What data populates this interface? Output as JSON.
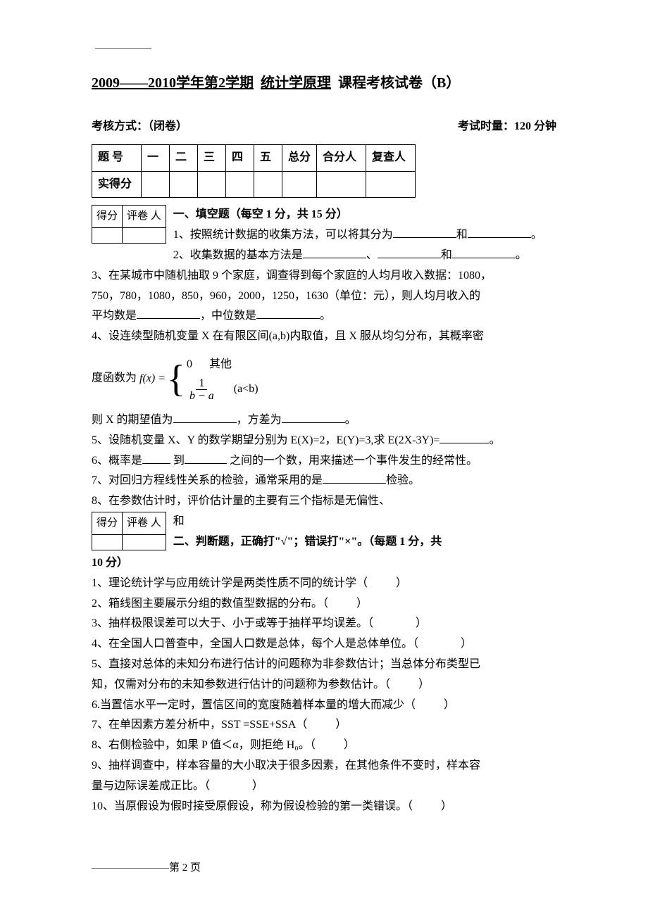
{
  "title": {
    "year_range": "2009——2010",
    "t1": "学年第",
    "semester": "2",
    "t2": "学期",
    "course": "统计学原理",
    "t3": "课程考核试卷（B）"
  },
  "exam_info": {
    "method": "考核方式：（闭卷）",
    "duration": "考试时量：120 分钟"
  },
  "score_table": {
    "headers": [
      "题 号",
      "一",
      "二",
      "三",
      "四",
      "五",
      "总分",
      "合分人",
      "复查人"
    ],
    "row2_label": "实得分"
  },
  "grader": {
    "c1": "得分",
    "c2": "评卷 人"
  },
  "section1_head": "一、填空题（每空 1 分，共 15 分）",
  "q1": {
    "pre": "1、按照统计数据的收集方法，可以将其分为",
    "mid": "和",
    "end": "。"
  },
  "q2": {
    "pre": "2、收集数据的基本方法是",
    "sep1": "、",
    "sep2": "和",
    "end": "。"
  },
  "q3": {
    "line1": "3、在某城市中随机抽取 9 个家庭，调查得到每个家庭的人均月收入数据：1080，",
    "line2": "750，780，1080，850，960，2000，1250，1630（单位：元），则人均月收入的",
    "line3a": "平均数是",
    "line3b": "，中位数是",
    "line3c": "。"
  },
  "q4": {
    "line1": "4、设连续型随机变量 X 在有限区间(a,b)内取值，且 X 服从均匀分布，其概率密",
    "fx_pre": "度函数为",
    "fx_label": "f(x) =",
    "case1_val": "0",
    "case1_cond": "其他",
    "case2_num": "1",
    "case2_den": "b − a",
    "case2_cond": "(a<b)",
    "line3a": "则 X 的期望值为",
    "line3b": "，方差为",
    "line3c": "。"
  },
  "q5": {
    "pre": "5、设随机变量 X、Y 的数学期望分别为 E(X)=2，E(Y)=3,求 E(2X-3Y)=",
    "end": "。"
  },
  "q6": {
    "a": "6、概率是",
    "b": " 到",
    "c": " 之间的一个数，用来描述一个事件发生的经常性。"
  },
  "q7": {
    "a": "7、对回归方程线性关系的检验，通常采用的是",
    "b": "检验。"
  },
  "q8": {
    "line1": "8、在参数估计时，评价估计量的主要有三个指标是无偏性、",
    "line2": "和"
  },
  "section2_head": "二、判断题，正确打\"√\"；错误打\"×\"。（每题 1 分，共",
  "section2_head2": "10 分）",
  "j1": "1、理论统计学与应用统计学是两类性质不同的统计学（",
  "j2": "2、箱线图主要展示分组的数值型数据的分布。（",
  "j3": "3、抽样极限误差可以大于、小于或等于抽样平均误差。（",
  "j4": "4、在全国人口普查中，全国人口数是总体，每个人是总体单位。（",
  "j5a": "5、直接对总体的未知分布进行估计的问题称为非参数估计；当总体分布类型已",
  "j5b": "知，仅需对分布的未知参数进行估计的问题称为参数估计。（",
  "j6": "6.当置信水平一定时，置信区间的宽度随着样本量的增大而减少（",
  "j7": "7、在单因素方差分析中，SST =SSE+SSA（",
  "j8": "8、右侧检验中，如果 P 值＜α，则拒绝 H₀。（",
  "j9a": "9、抽样调查中，样本容量的大小取决于很多因素，在其他条件不变时，样本容",
  "j9b": "量与边际误差成正比。（",
  "j10": "10、当原假设为假时接受原假设，称为假设检验的第一类错误。（",
  "close_paren": "）",
  "side_label": "得分",
  "footer": "第 2 页"
}
